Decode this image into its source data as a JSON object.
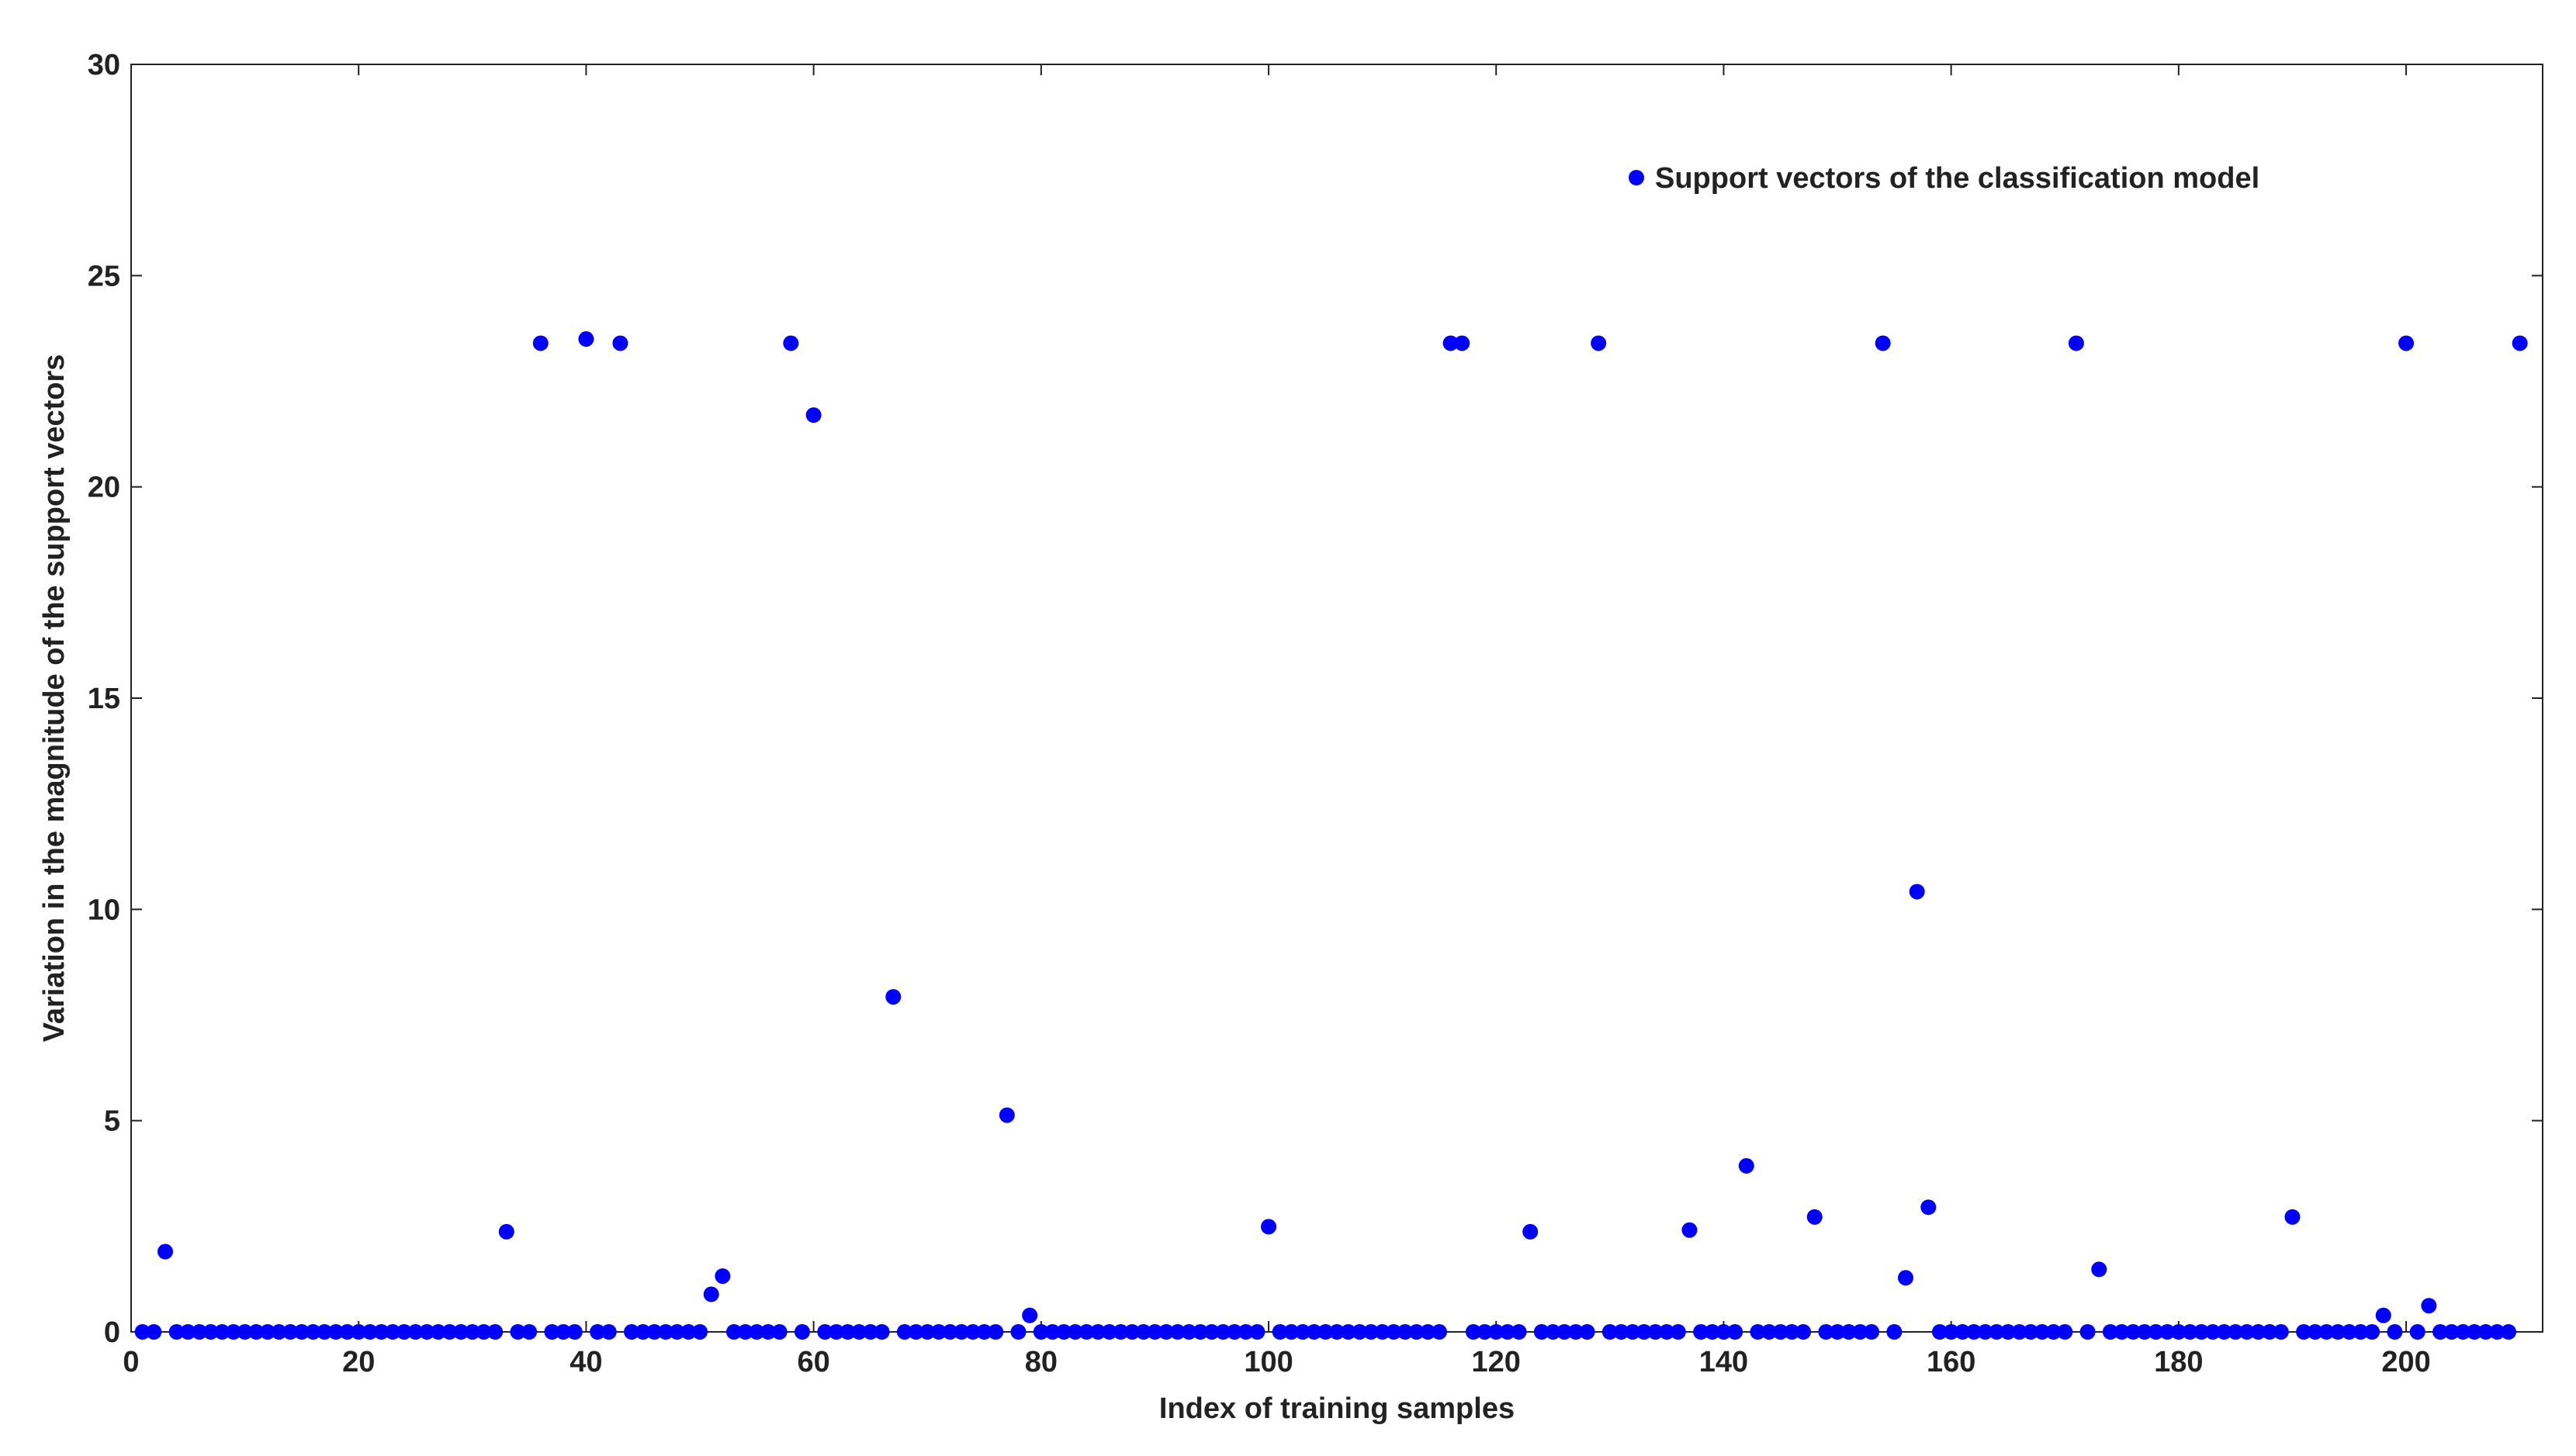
{
  "chart_data": {
    "type": "scatter",
    "xlabel": "Index of training samples",
    "ylabel": "Variation in the magnitude of the support vectors",
    "x": [
      1,
      2,
      3,
      4,
      5,
      6,
      7,
      8,
      9,
      10,
      11,
      12,
      13,
      14,
      15,
      16,
      17,
      18,
      19,
      20,
      21,
      22,
      23,
      24,
      25,
      26,
      27,
      28,
      29,
      30,
      31,
      32,
      33,
      34,
      35,
      36,
      37,
      38,
      39,
      40,
      41,
      42,
      43,
      44,
      45,
      46,
      47,
      48,
      49,
      50,
      51,
      52,
      53,
      54,
      55,
      56,
      57,
      58,
      59,
      60,
      61,
      62,
      63,
      64,
      65,
      66,
      67,
      68,
      69,
      70,
      71,
      72,
      73,
      74,
      75,
      76,
      77,
      78,
      79,
      80,
      81,
      82,
      83,
      84,
      85,
      86,
      87,
      88,
      89,
      90,
      91,
      92,
      93,
      94,
      95,
      96,
      97,
      98,
      99,
      100,
      101,
      102,
      103,
      104,
      105,
      106,
      107,
      108,
      109,
      110,
      111,
      112,
      113,
      114,
      115,
      116,
      117,
      118,
      119,
      120,
      121,
      122,
      123,
      124,
      125,
      126,
      127,
      128,
      129,
      130,
      131,
      132,
      133,
      134,
      135,
      136,
      137,
      138,
      139,
      140,
      141,
      142,
      143,
      144,
      145,
      146,
      147,
      148,
      149,
      150,
      151,
      152,
      153,
      154,
      155,
      156,
      157,
      158,
      159,
      160,
      161,
      162,
      163,
      164,
      165,
      166,
      167,
      168,
      169,
      170,
      171,
      172,
      173,
      174,
      175,
      176,
      177,
      178,
      179,
      180,
      181,
      182,
      183,
      184,
      185,
      186,
      187,
      188,
      189,
      190,
      191,
      192,
      193,
      194,
      195,
      196,
      197,
      198,
      199,
      200,
      201,
      202,
      203,
      204,
      205,
      206,
      207,
      208,
      209,
      210
    ],
    "series": [
      {
        "name": "Support vectors of the classification model",
        "color": "#0000ff",
        "values": [
          0,
          0,
          1.9,
          0,
          0,
          0,
          0,
          0,
          0,
          0,
          0,
          0,
          0,
          0,
          0,
          0,
          0,
          0,
          0,
          0,
          0,
          0,
          0,
          0,
          0,
          0,
          0,
          0,
          0,
          0,
          0,
          0,
          2.37,
          0,
          0,
          23.4,
          0,
          0,
          0,
          23.5,
          0,
          0,
          23.4,
          0,
          0,
          0,
          0,
          0,
          0,
          0,
          0.89,
          1.32,
          0,
          0,
          0,
          0,
          0,
          23.4,
          0,
          21.7,
          0,
          0,
          0,
          0,
          0,
          0,
          7.93,
          0,
          0,
          0,
          0,
          0,
          0,
          0,
          0,
          0,
          5.13,
          0,
          0.39,
          0,
          0,
          0,
          0,
          0,
          0,
          0,
          0,
          0,
          0,
          0,
          0,
          0,
          0,
          0,
          0,
          0,
          0,
          0,
          0,
          2.49,
          0,
          0,
          0,
          0,
          0,
          0,
          0,
          0,
          0,
          0,
          0,
          0,
          0,
          0,
          0,
          23.4,
          23.4,
          0,
          0,
          0,
          0,
          0,
          2.37,
          0,
          0,
          0,
          0,
          0,
          23.4,
          0,
          0,
          0,
          0,
          0,
          0,
          0,
          2.41,
          0,
          0,
          0,
          0,
          3.93,
          0,
          0,
          0,
          0,
          0,
          2.72,
          0,
          0,
          0,
          0,
          0,
          23.4,
          0,
          1.28,
          10.42,
          2.95,
          0,
          0,
          0,
          0,
          0,
          0,
          0,
          0,
          0,
          0,
          0,
          0,
          23.4,
          0,
          1.48,
          0,
          0,
          0,
          0,
          0,
          0,
          0,
          0,
          0,
          0,
          0,
          0,
          0,
          0,
          0,
          0,
          2.72,
          0,
          0,
          0,
          0,
          0,
          0,
          0,
          0.39,
          0,
          23.4,
          0,
          0.62,
          0,
          0,
          0,
          0,
          0,
          0,
          0,
          23.4
        ]
      }
    ],
    "xlim": [
      0,
      212
    ],
    "ylim": [
      0,
      30
    ],
    "xticks": [
      0,
      20,
      40,
      60,
      80,
      100,
      120,
      140,
      160,
      180,
      200
    ],
    "yticks": [
      0,
      5,
      10,
      15,
      20,
      25,
      30
    ]
  }
}
